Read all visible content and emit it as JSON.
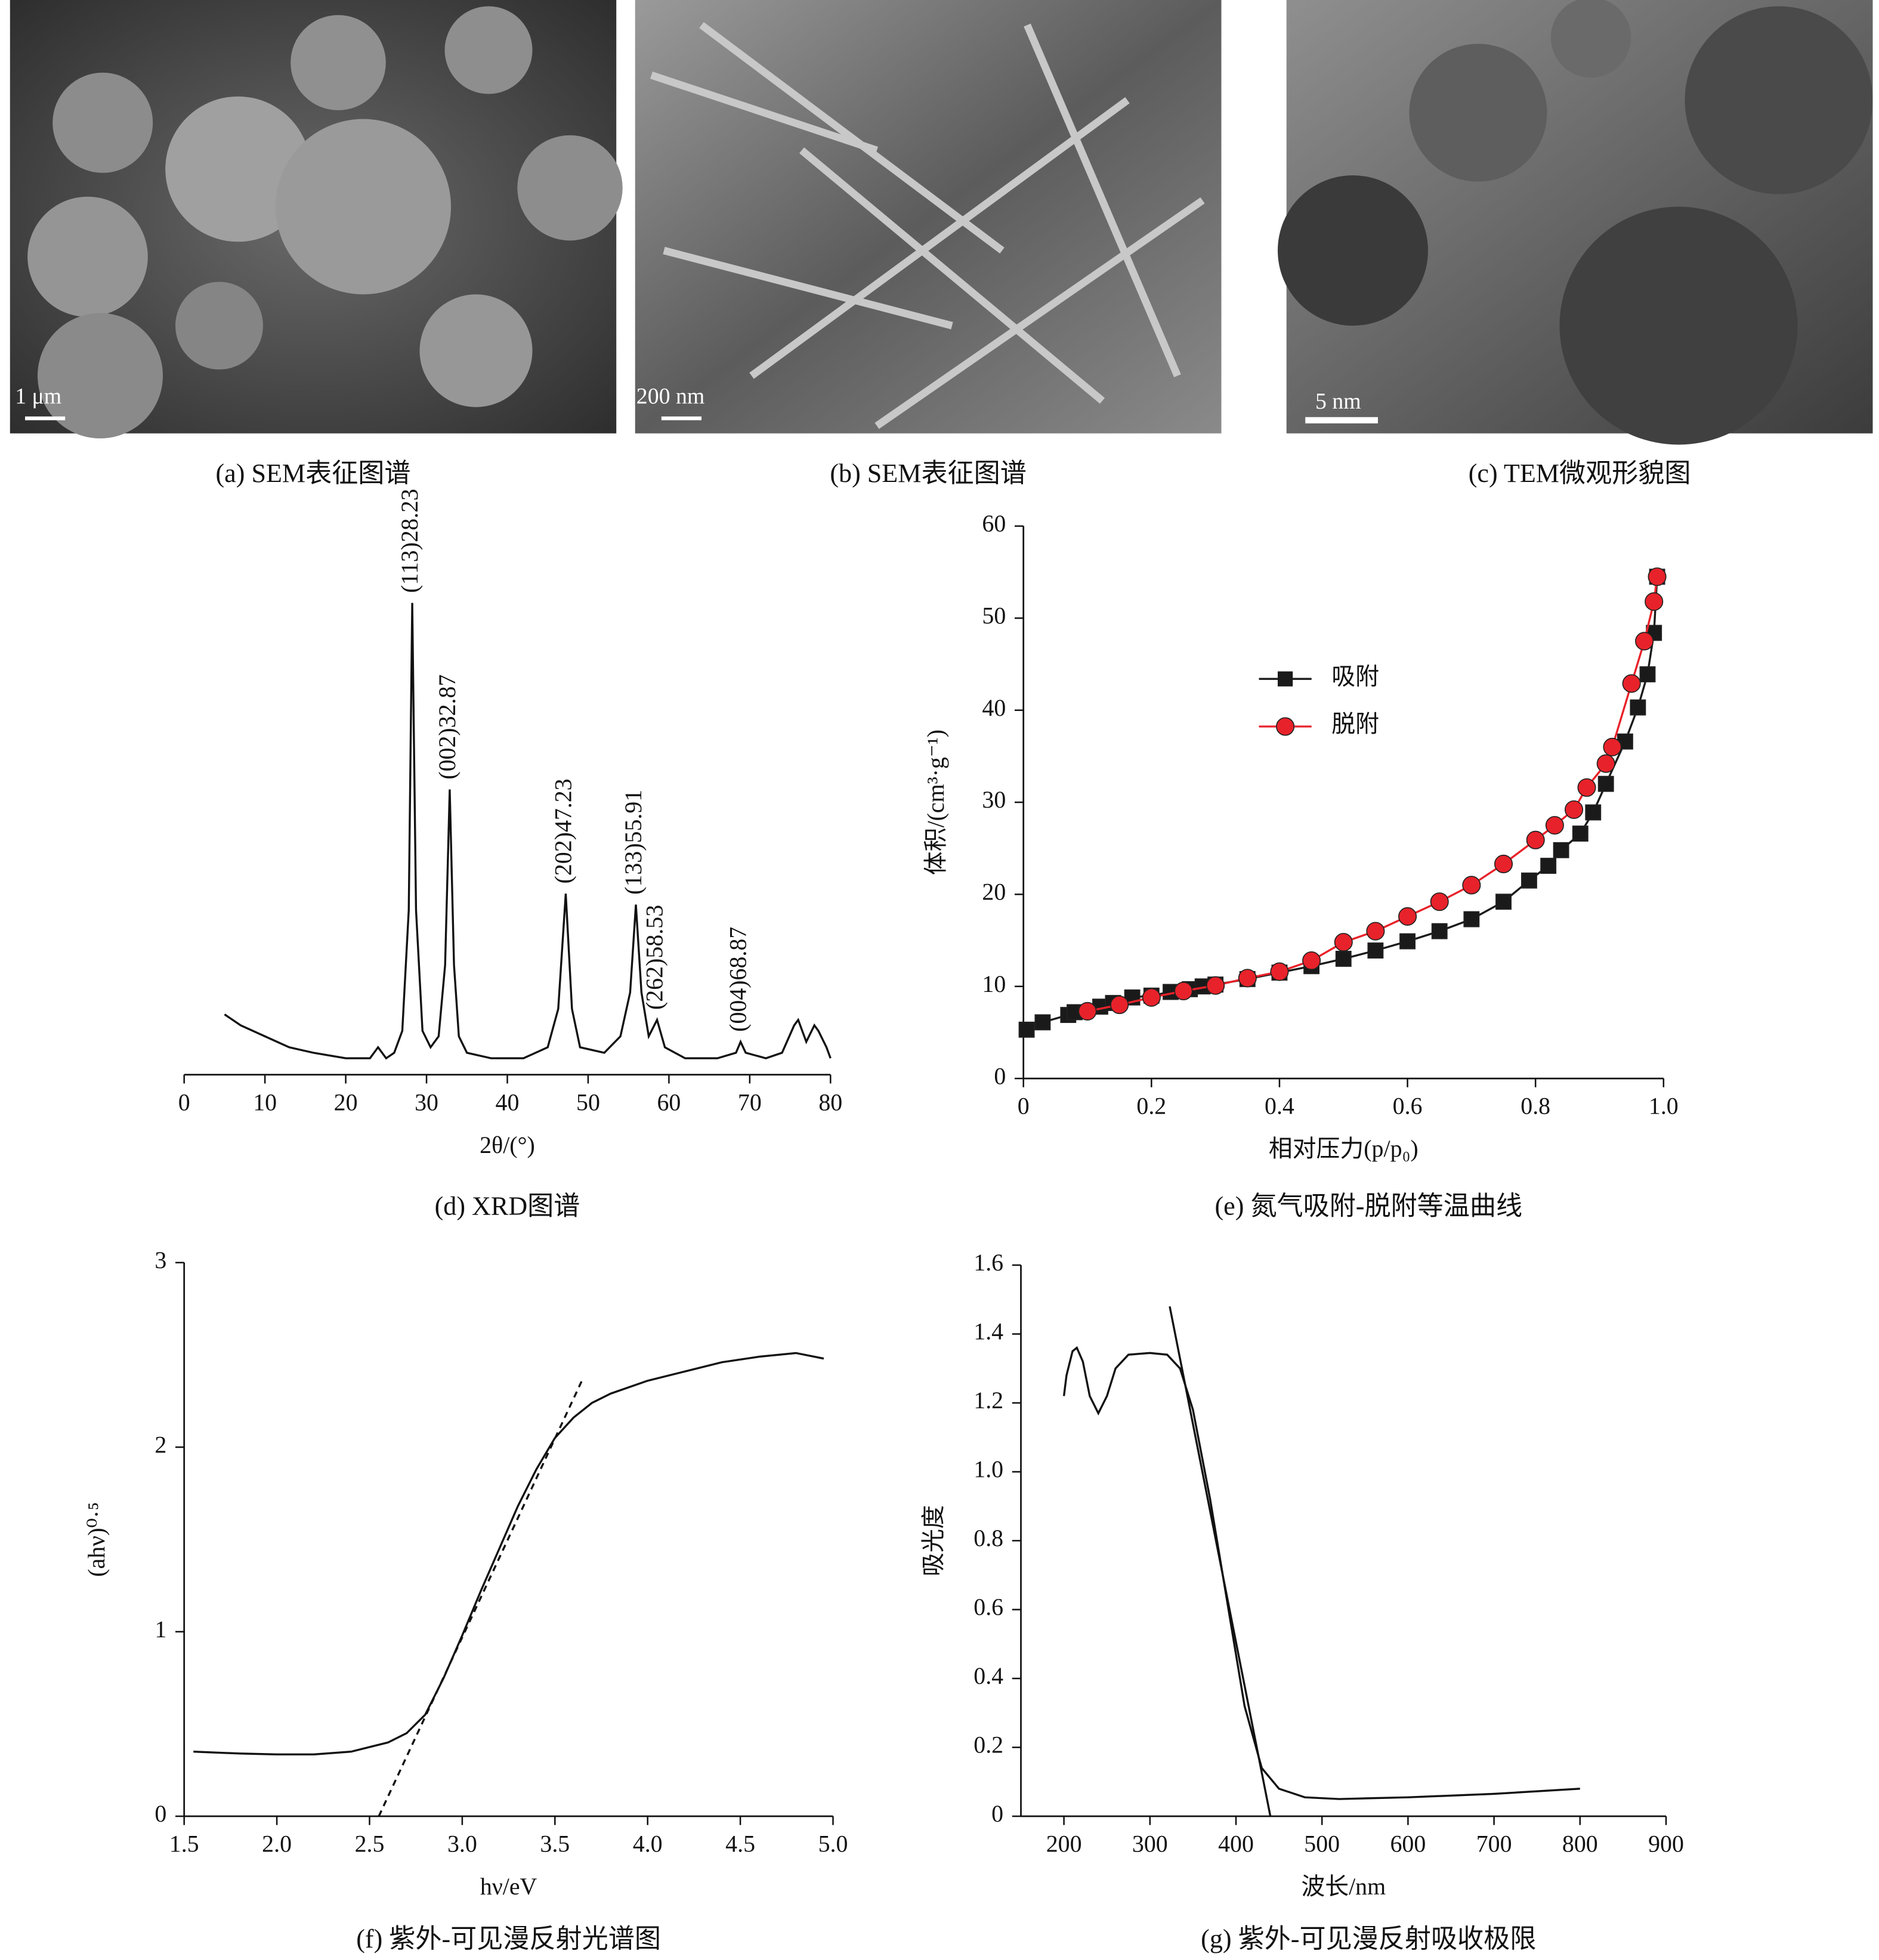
{
  "images": [
    {
      "caption": "(a) SEM表征图谱",
      "scale_bar": "1 μm"
    },
    {
      "caption": "(b) SEM表征图谱",
      "scale_bar": "200 nm"
    },
    {
      "caption": "(c) TEM微观形貌图",
      "scale_bar": "5 nm"
    }
  ],
  "chart_data": [
    {
      "type": "line",
      "caption": "(d) XRD图谱",
      "x_label": "2θ/(°)",
      "color": "#111111",
      "x": [
        5,
        7,
        10,
        13,
        16,
        20,
        23,
        24,
        25,
        26,
        27,
        27.8,
        28.23,
        28.7,
        29.5,
        30.5,
        31.5,
        32.3,
        32.87,
        33.4,
        34,
        35,
        38,
        42,
        45,
        46.3,
        47.23,
        48,
        49,
        52,
        54,
        55.2,
        55.91,
        56.6,
        57.5,
        58.53,
        59.5,
        62,
        66,
        68.3,
        68.87,
        69.5,
        72,
        74,
        75.5,
        76,
        77,
        78,
        78.5,
        79.5,
        80
      ],
      "values": [
        11,
        9,
        7,
        5,
        4,
        3,
        3,
        5,
        3,
        4,
        8,
        30,
        86,
        30,
        8,
        5,
        7,
        20,
        52,
        20,
        7,
        4,
        3,
        3,
        5,
        12,
        33,
        12,
        5,
        4,
        7,
        15,
        31,
        15,
        7,
        10,
        5,
        3,
        3,
        4,
        6,
        4,
        3,
        4,
        9,
        10,
        6,
        9,
        8,
        5,
        3
      ],
      "xlim": [
        0,
        80
      ],
      "xticks": [
        0,
        10,
        20,
        30,
        40,
        50,
        60,
        70,
        80
      ],
      "ylim": [
        0,
        100
      ],
      "annotations": [
        {
          "text": "(113)28.23",
          "x": 28.23,
          "y": 86
        },
        {
          "text": "(002)32.87",
          "x": 32.87,
          "y": 52
        },
        {
          "text": "(202)47.23",
          "x": 47.23,
          "y": 33
        },
        {
          "text": "(133)55.91",
          "x": 55.91,
          "y": 31
        },
        {
          "text": "(262)58.53",
          "x": 58.53,
          "y": 10
        },
        {
          "text": "(004)68.87",
          "x": 68.87,
          "y": 6
        }
      ]
    },
    {
      "type": "line",
      "caption": "(e) 氮气吸附-脱附等温曲线",
      "x_label": "相对压力(p/p₀)",
      "y_label": "体积/(cm³·g⁻¹)",
      "legend": "upper left",
      "series": [
        {
          "name": "吸附",
          "color": "#1a1a1a",
          "marker": "square",
          "x": [
            0.005,
            0.03,
            0.07,
            0.08,
            0.12,
            0.14,
            0.17,
            0.2,
            0.23,
            0.26,
            0.28,
            0.3,
            0.35,
            0.4,
            0.45,
            0.5,
            0.55,
            0.6,
            0.65,
            0.7,
            0.75,
            0.79,
            0.82,
            0.84,
            0.87,
            0.89,
            0.91,
            0.94,
            0.96,
            0.975,
            0.985,
            0.99
          ],
          "values": [
            5.3,
            6.1,
            6.9,
            7.2,
            7.8,
            8.2,
            8.8,
            9.0,
            9.4,
            9.7,
            10.0,
            10.2,
            10.8,
            11.5,
            12.2,
            13.0,
            13.9,
            14.9,
            16.0,
            17.3,
            19.2,
            21.5,
            23.1,
            24.8,
            26.6,
            28.9,
            32.0,
            36.6,
            40.3,
            43.9,
            48.4,
            54.5
          ]
        },
        {
          "name": "脱附",
          "color": "#e8222a",
          "marker": "circle",
          "x": [
            0.1,
            0.15,
            0.2,
            0.25,
            0.3,
            0.35,
            0.4,
            0.45,
            0.5,
            0.55,
            0.6,
            0.65,
            0.7,
            0.75,
            0.8,
            0.83,
            0.86,
            0.88,
            0.91,
            0.92,
            0.95,
            0.97,
            0.985,
            0.99
          ],
          "values": [
            7.3,
            8.0,
            8.8,
            9.5,
            10.1,
            10.9,
            11.6,
            12.8,
            14.8,
            16.0,
            17.6,
            19.2,
            21.0,
            23.3,
            25.9,
            27.5,
            29.2,
            31.6,
            34.2,
            36.0,
            42.9,
            47.5,
            51.8,
            54.5
          ]
        }
      ],
      "xlim": [
        0,
        1
      ],
      "xticks": [
        0,
        0.2,
        0.4,
        0.6,
        0.8,
        {
          "value": 1,
          "label": "1.0"
        }
      ],
      "ylim": [
        0,
        60
      ],
      "yticks": [
        0,
        10,
        20,
        30,
        40,
        50,
        60
      ]
    },
    {
      "type": "line",
      "caption": "(f) 紫外-可见漫反射光谱图",
      "x_label": "hν/eV",
      "y_label": "(ahν)⁰·⁵",
      "color": "#111111",
      "x": [
        1.55,
        1.8,
        2.0,
        2.2,
        2.4,
        2.6,
        2.7,
        2.8,
        2.9,
        3.0,
        3.1,
        3.2,
        3.3,
        3.4,
        3.5,
        3.6,
        3.7,
        3.8,
        4.0,
        4.2,
        4.4,
        4.6,
        4.8,
        4.95
      ],
      "values": [
        0.35,
        0.34,
        0.335,
        0.335,
        0.35,
        0.4,
        0.45,
        0.55,
        0.75,
        0.98,
        1.22,
        1.45,
        1.68,
        1.88,
        2.05,
        2.16,
        2.24,
        2.29,
        2.36,
        2.41,
        2.46,
        2.49,
        2.51,
        2.48
      ],
      "tangent": {
        "x": [
          2.55,
          3.65
        ],
        "values": [
          0,
          2.37
        ],
        "dashed": true
      },
      "xlim": [
        1.5,
        5.0
      ],
      "xticks": [
        1.5,
        {
          "value": 2,
          "label": "2.0"
        },
        2.5,
        {
          "value": 3,
          "label": "3.0"
        },
        3.5,
        {
          "value": 4,
          "label": "4.0"
        },
        4.5,
        {
          "value": 5,
          "label": "5.0"
        }
      ],
      "ylim": [
        0,
        3
      ],
      "yticks": [
        0,
        1,
        2,
        3
      ]
    },
    {
      "type": "line",
      "caption": "(g) 紫外-可见漫反射吸收极限",
      "x_label": "波长/nm",
      "y_label": "吸光度",
      "color": "#111111",
      "x": [
        200,
        203,
        210,
        215,
        222,
        230,
        240,
        250,
        260,
        275,
        300,
        320,
        335,
        350,
        370,
        390,
        410,
        430,
        450,
        480,
        520,
        600,
        700,
        800
      ],
      "values": [
        1.22,
        1.28,
        1.35,
        1.36,
        1.32,
        1.22,
        1.17,
        1.22,
        1.3,
        1.34,
        1.345,
        1.34,
        1.3,
        1.18,
        0.92,
        0.62,
        0.32,
        0.14,
        0.08,
        0.055,
        0.05,
        0.055,
        0.065,
        0.08
      ],
      "tangent": {
        "x": [
          323,
          440
        ],
        "values": [
          1.48,
          0
        ],
        "dashed": false
      },
      "xlim": [
        150,
        900
      ],
      "xticks": [
        200,
        300,
        400,
        500,
        600,
        700,
        800,
        900
      ],
      "ylim": [
        0,
        1.6
      ],
      "yticks": [
        0,
        0.2,
        0.4,
        0.6,
        0.8,
        {
          "value": 1,
          "label": "1.0"
        },
        1.2,
        1.4,
        1.6
      ]
    }
  ]
}
